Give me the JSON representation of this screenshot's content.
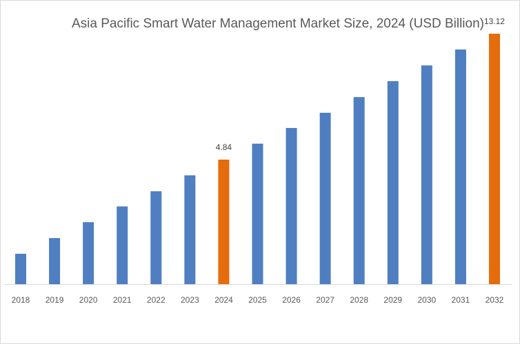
{
  "chart_data": {
    "type": "bar",
    "title": "Asia Pacific Smart Water Management Market Size, 2024 (USD Billion)",
    "xlabel": "",
    "ylabel": "",
    "categories": [
      "2018",
      "2019",
      "2020",
      "2021",
      "2022",
      "2023",
      "2024",
      "2025",
      "2026",
      "2027",
      "2028",
      "2029",
      "2030",
      "2031",
      "2032"
    ],
    "values": [
      1.18,
      1.79,
      2.41,
      3.02,
      3.61,
      4.23,
      4.84,
      5.46,
      6.07,
      6.66,
      7.27,
      7.89,
      8.5,
      9.12,
      13.12
    ],
    "data_labels": {
      "2024": "4.84",
      "2032": "13.12"
    },
    "highlight": [
      "2024",
      "2032"
    ],
    "colors": {
      "default": "#4f7fc0",
      "highlight": "#e46c0a"
    },
    "grid": false,
    "legend": "none"
  }
}
